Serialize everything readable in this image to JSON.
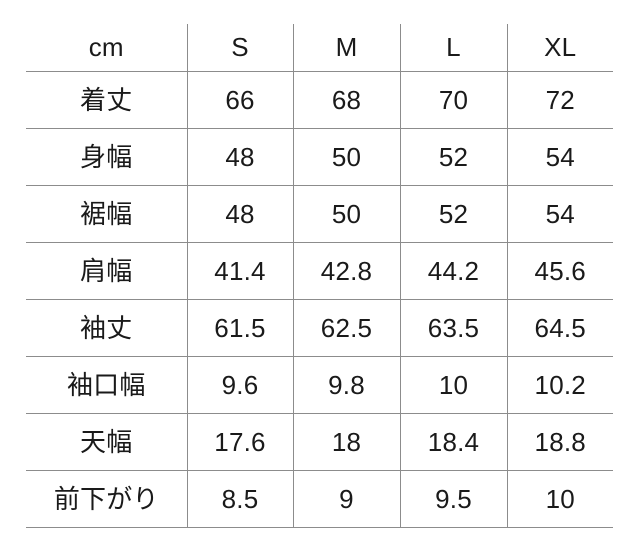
{
  "colors": {
    "background": "#ffffff",
    "grid_line": "#8c8c8c",
    "text": "#1a1a1a"
  },
  "chart_data": {
    "type": "table",
    "title": "",
    "unit_header": "cm",
    "columns": [
      "cm",
      "S",
      "M",
      "L",
      "XL"
    ],
    "rows": [
      {
        "label": "着丈",
        "values": [
          66,
          68,
          70,
          72
        ]
      },
      {
        "label": "身幅",
        "values": [
          48,
          50,
          52,
          54
        ]
      },
      {
        "label": "裾幅",
        "values": [
          48,
          50,
          52,
          54
        ]
      },
      {
        "label": "肩幅",
        "values": [
          41.4,
          42.8,
          44.2,
          45.6
        ]
      },
      {
        "label": "袖丈",
        "values": [
          61.5,
          62.5,
          63.5,
          64.5
        ]
      },
      {
        "label": "袖口幅",
        "values": [
          9.6,
          9.8,
          10,
          10.2
        ]
      },
      {
        "label": "天幅",
        "values": [
          17.6,
          18,
          18.4,
          18.8
        ]
      },
      {
        "label": "前下がり",
        "values": [
          8.5,
          9,
          9.5,
          10
        ]
      }
    ]
  }
}
